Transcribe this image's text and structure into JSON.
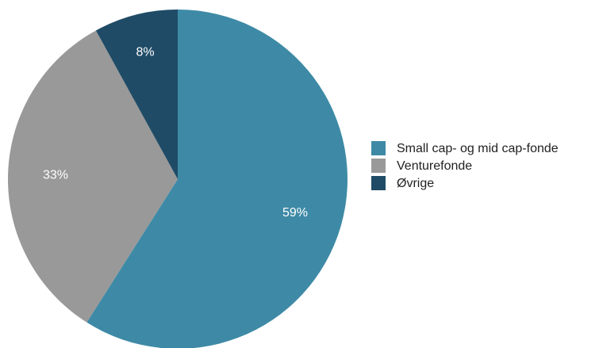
{
  "chart_data": {
    "type": "pie",
    "slices": [
      {
        "label": "Small cap- og mid cap-fonde",
        "value": 59,
        "value_label": "59%",
        "color": "#3E8AA6"
      },
      {
        "label": "Venturefonde",
        "value": 33,
        "value_label": "33%",
        "color": "#999999"
      },
      {
        "label": "Øvrige",
        "value": 8,
        "value_label": "8%",
        "color": "#1F4B66"
      }
    ],
    "start": "top",
    "direction": "clockwise",
    "legend_position": "right"
  }
}
